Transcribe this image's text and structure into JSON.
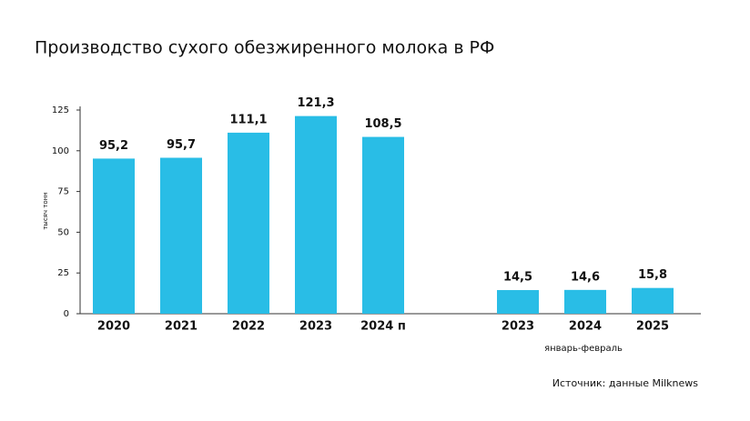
{
  "chart_data": {
    "type": "bar",
    "title": "Производство сухого обезжиренного молока в РФ",
    "y_label": "тысяч тонн",
    "annotation": "январь-февраль",
    "source": "Источник: данные Milknews",
    "categories": [
      "2020",
      "2021",
      "2022",
      "2023",
      "2024 п",
      null,
      "2023",
      "2024",
      "2025"
    ],
    "values": [
      95.2,
      95.7,
      111.1,
      121.3,
      108.5,
      null,
      14.5,
      14.6,
      15.8
    ],
    "value_labels": [
      "95,2",
      "95,7",
      "111,1",
      "121,3",
      "108,5",
      null,
      "14,5",
      "14,6",
      "15,8"
    ],
    "color": "#29bde6",
    "ylim": [
      0,
      125
    ],
    "yticks": [
      0,
      25,
      50,
      75,
      100,
      125
    ],
    "grid": false
  }
}
